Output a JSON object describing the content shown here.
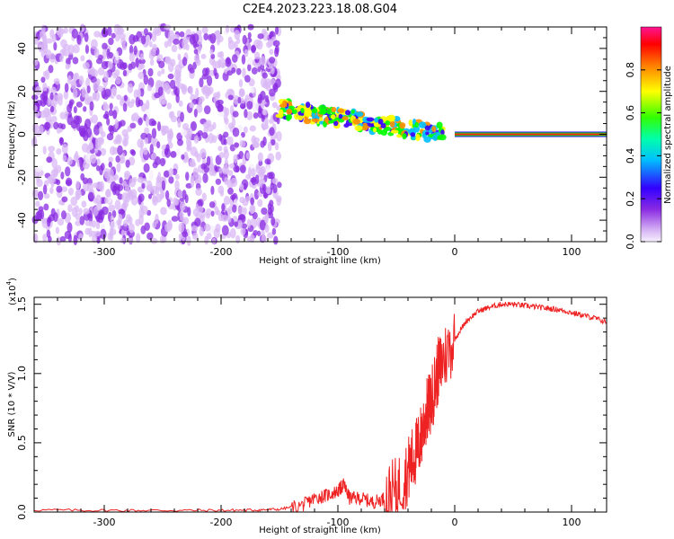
{
  "figure": {
    "title": "C2E4.2023.223.18.08.G04"
  },
  "chart_data": [
    {
      "type": "heatmap",
      "title": "C2E4.2023.223.18.08.G04",
      "xlabel": "Height of straight line (km)",
      "ylabel": "Frequency (Hz)",
      "xlim": [
        -360,
        130
      ],
      "ylim": [
        -50,
        50
      ],
      "xticks": [
        -300,
        -200,
        -100,
        0,
        100
      ],
      "yticks": [
        -40,
        -20,
        0,
        20,
        40
      ],
      "colorbar": {
        "label": "Normalized spectral amplitude",
        "range": [
          0.0,
          1.0
        ],
        "ticks": [
          "0.0",
          "0.2",
          "0.4",
          "0.6",
          "0.8"
        ],
        "colormap": [
          "#f4eefc",
          "#d9b8f5",
          "#8a2be2",
          "#3b00ff",
          "#00bfff",
          "#00ff00",
          "#ffff00",
          "#ff8c00",
          "#ff0000",
          "#ff1493"
        ]
      },
      "features": [
        {
          "region": "diffuse noise",
          "x": [
            -360,
            -150
          ],
          "freq": [
            -50,
            50
          ],
          "amplitude": [
            0.05,
            0.25
          ]
        },
        {
          "region": "scattered signal",
          "x": [
            -150,
            -10
          ],
          "freq_start": 12,
          "freq_end": 0,
          "amplitude": [
            0.3,
            0.8
          ]
        },
        {
          "region": "tracking line",
          "x": [
            0,
            130
          ],
          "freq": 0,
          "amplitude": 1.0
        }
      ],
      "grid": false
    },
    {
      "type": "line",
      "xlabel": "Height of straight line (km)",
      "ylabel": "SNR (10 * V/V)",
      "scale_label": "(x10",
      "scale_exponent": "4",
      "scale_suffix": ")",
      "xlim": [
        -360,
        130
      ],
      "ylim": [
        0,
        1.55
      ],
      "xticks": [
        -300,
        -200,
        -100,
        0,
        100
      ],
      "yticks": [
        "0.0",
        "0.5",
        "1.0",
        "1.5"
      ],
      "series": [
        {
          "color": "#ee2222",
          "x": [
            -360,
            -300,
            -250,
            -200,
            -170,
            -150,
            -130,
            -120,
            -110,
            -100,
            -95,
            -90,
            -80,
            -70,
            -60,
            -50,
            -40,
            -35,
            -30,
            -25,
            -20,
            -15,
            -10,
            0,
            10,
            20,
            30,
            40,
            50,
            60,
            70,
            80,
            90,
            100,
            110,
            120,
            130
          ],
          "y": [
            0.015,
            0.012,
            0.012,
            0.012,
            0.015,
            0.02,
            0.05,
            0.1,
            0.12,
            0.15,
            0.2,
            0.1,
            0.1,
            0.07,
            0.1,
            0.15,
            0.3,
            0.4,
            0.5,
            0.7,
            0.8,
            1.0,
            1.1,
            1.25,
            1.38,
            1.45,
            1.48,
            1.5,
            1.5,
            1.49,
            1.48,
            1.47,
            1.46,
            1.44,
            1.42,
            1.4,
            1.37
          ]
        }
      ],
      "grid": false
    }
  ]
}
